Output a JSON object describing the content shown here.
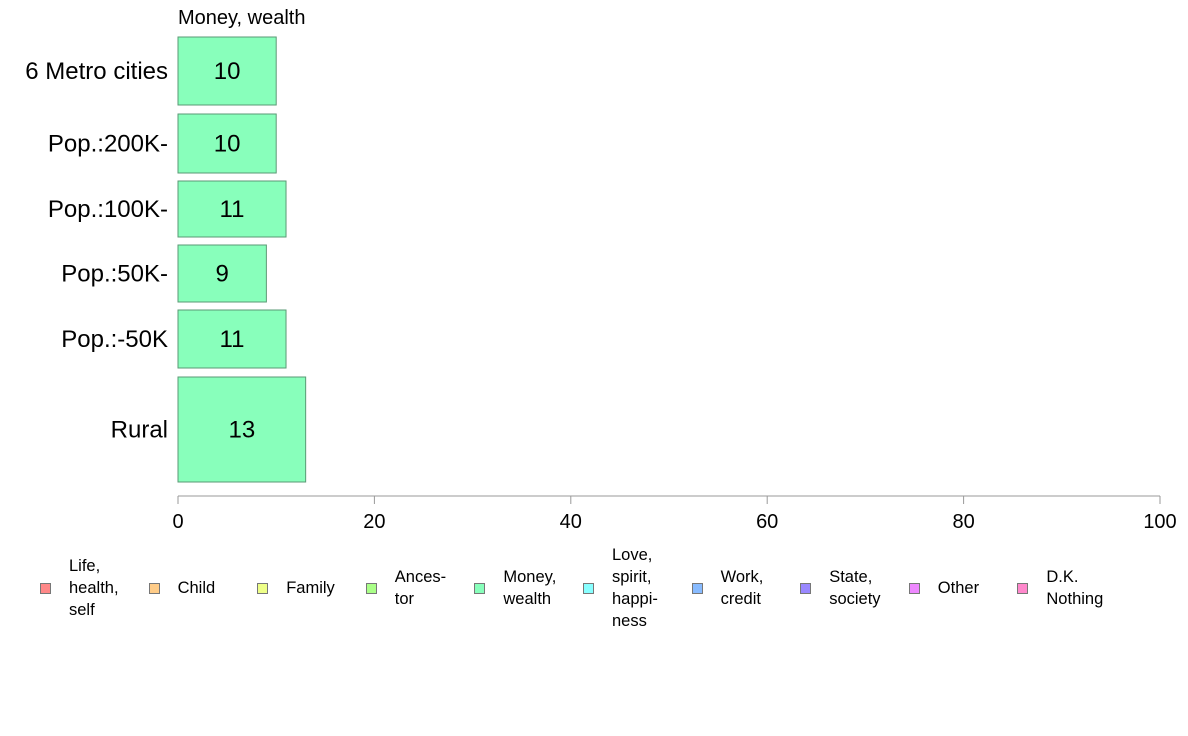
{
  "chart_data": {
    "type": "bar",
    "orientation": "horizontal",
    "title": "Money, wealth",
    "categories": [
      "6 Metro cities",
      "Pop.:200K-",
      "Pop.:100K-",
      "Pop.:50K-",
      "Pop.:-50K",
      "Rural"
    ],
    "values": [
      10,
      10,
      11,
      9,
      11,
      13
    ],
    "data_labels": [
      "10",
      "10",
      "11",
      "9",
      "11",
      "13"
    ],
    "xlim": [
      0,
      100
    ],
    "xticks": [
      0,
      20,
      40,
      60,
      80,
      100
    ],
    "bar_color": "#88ffbb",
    "bar_stroke": "#5a9a74",
    "grid": false,
    "legend_position": "bottom",
    "legend": [
      {
        "label": "Life,\nhealth,\nself",
        "color": "#ff8888"
      },
      {
        "label": "Child",
        "color": "#ffcc88"
      },
      {
        "label": "Family",
        "color": "#eeff88"
      },
      {
        "label": "Ances-\ntor",
        "color": "#aaff88"
      },
      {
        "label": "Money,\nwealth",
        "color": "#88ffbb"
      },
      {
        "label": "Love,\nspirit,\nhappi-\nness",
        "color": "#88ffff"
      },
      {
        "label": "Work,\ncredit",
        "color": "#88bbff"
      },
      {
        "label": "State,\nsociety",
        "color": "#9988ff"
      },
      {
        "label": "Other",
        "color": "#ee88ff"
      },
      {
        "label": "D.K.\nNothing",
        "color": "#ff88cc"
      }
    ]
  }
}
